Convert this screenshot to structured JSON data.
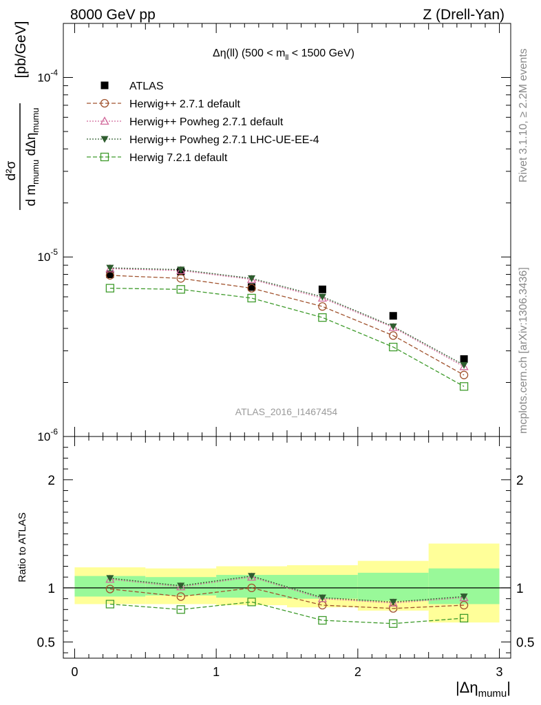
{
  "header": {
    "left": "8000 GeV pp",
    "right": "Z (Drell-Yan)"
  },
  "side": {
    "rivet": "Rivet 3.1.10, ≥ 2.2M events",
    "mcplots": "mcplots.cern.ch [arXiv:1306.3436]"
  },
  "watermark": "ATLAS_2016_I1467454",
  "legend_title": {
    "main": "Δη(ll) (500 < m",
    "sub": "ll",
    "tail": " < 1500 GeV)"
  },
  "ylabel": {
    "num": "d²σ",
    "den_a": "d m",
    "den_a_sub": "mumu",
    "den_b": " dΔη",
    "den_b_sub": "mumu",
    "unit": "[pb/GeV]"
  },
  "ratio_ylabel": "Ratio to ATLAS",
  "xlabel": {
    "main": "|Δη",
    "sub": "mumu",
    "tail": "|"
  },
  "colors": {
    "data": "#000000",
    "herwigpp": "#a0522d",
    "powheg": "#d1689a",
    "powheg_ue": "#2f5d2f",
    "herwig7": "#3d9a2a",
    "band_inner": "#99f999",
    "band_outer": "#ffff99"
  },
  "chart_data": {
    "type": "scatter",
    "x_bins": [
      [
        0,
        0.5
      ],
      [
        0.5,
        1.0
      ],
      [
        1.0,
        1.5
      ],
      [
        1.5,
        2.0
      ],
      [
        2.0,
        2.5
      ],
      [
        2.5,
        3.0
      ]
    ],
    "x": [
      0.25,
      0.75,
      1.25,
      1.75,
      2.25,
      2.75
    ],
    "xlim": [
      -0.08,
      3.08
    ],
    "x_ticks": [
      "0",
      "1",
      "2",
      "3"
    ],
    "main": {
      "yscale": "log",
      "ylim": [
        1e-06,
        0.0002
      ],
      "y_ticks": [
        {
          "base": "10",
          "exp": "-6",
          "value": 1e-06
        },
        {
          "base": "10",
          "exp": "-5",
          "value": 1e-05
        },
        {
          "base": "10",
          "exp": "-4",
          "value": 0.0001
        }
      ]
    },
    "ratio": {
      "ylim": [
        0.35,
        2.4
      ],
      "y_ticks": [
        "0.5",
        "1",
        "2"
      ],
      "band_inner": [
        [
          0.92,
          1.11
        ],
        [
          0.93,
          1.1
        ],
        [
          0.91,
          1.12
        ],
        [
          0.9,
          1.12
        ],
        [
          0.88,
          1.14
        ],
        [
          0.85,
          1.18
        ]
      ],
      "band_outer": [
        [
          0.85,
          1.19
        ],
        [
          0.85,
          1.18
        ],
        [
          0.84,
          1.2
        ],
        [
          0.82,
          1.21
        ],
        [
          0.79,
          1.25
        ],
        [
          0.68,
          1.41
        ]
      ]
    },
    "series": [
      {
        "name": "ATLAS",
        "key": "data",
        "marker": "square-filled",
        "line": "none",
        "values": [
          8e-06,
          8.3e-06,
          6.8e-06,
          6.6e-06,
          4.7e-06,
          2.7e-06
        ]
      },
      {
        "name": "Herwig++ 2.7.1 default",
        "key": "herwigpp",
        "marker": "circle-open",
        "line": "dashed",
        "values": [
          7.9e-06,
          7.6e-06,
          6.7e-06,
          5.3e-06,
          3.65e-06,
          2.2e-06
        ],
        "ratio": [
          0.99,
          0.92,
          1.0,
          0.84,
          0.81,
          0.84
        ]
      },
      {
        "name": "Herwig++ Powheg 2.7.1 default",
        "key": "powheg",
        "marker": "triangle-open",
        "line": "dotted",
        "values": [
          8.6e-06,
          8.4e-06,
          7.5e-06,
          5.9e-06,
          4.05e-06,
          2.45e-06
        ],
        "ratio": [
          1.08,
          1.01,
          1.1,
          0.9,
          0.86,
          0.91
        ]
      },
      {
        "name": "Herwig++ Powheg 2.7.1 LHC-UE-EE-4",
        "key": "powheg_ue",
        "marker": "triangle-down-filled",
        "line": "dotted",
        "values": [
          8.7e-06,
          8.5e-06,
          7.6e-06,
          6e-06,
          4.1e-06,
          2.5e-06
        ],
        "ratio": [
          1.09,
          1.02,
          1.11,
          0.91,
          0.87,
          0.92
        ]
      },
      {
        "name": "Herwig 7.2.1 default",
        "key": "herwig7",
        "marker": "square-open",
        "line": "dashed",
        "values": [
          6.7e-06,
          6.6e-06,
          5.9e-06,
          4.6e-06,
          3.15e-06,
          1.9e-06
        ],
        "ratio": [
          0.85,
          0.8,
          0.87,
          0.7,
          0.67,
          0.72
        ]
      }
    ]
  }
}
